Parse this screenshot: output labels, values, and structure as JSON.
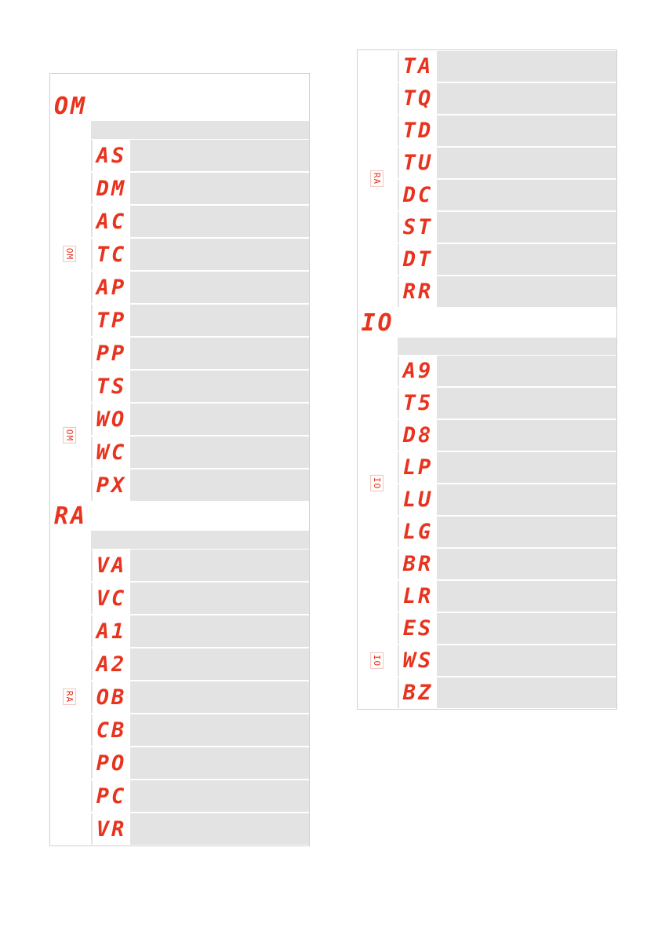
{
  "columns": [
    {
      "sections": [
        {
          "code": "OM",
          "groups": [
            {
              "label": "OM",
              "rows": [
                "AS",
                "DM",
                "AC",
                "TC",
                "AP",
                "TP",
                "PP"
              ]
            },
            {
              "label": "OM",
              "rows": [
                "TS",
                "WO",
                "WC",
                "PX"
              ]
            }
          ]
        },
        {
          "code": "RA",
          "groups": [
            {
              "label": "RA",
              "rows": [
                "VA",
                "VC",
                "A1",
                "A2",
                "OB",
                "CB",
                "PO",
                "PC",
                "VR"
              ]
            }
          ]
        }
      ]
    },
    {
      "sections": [
        {
          "code": null,
          "groups": [
            {
              "label": "RA",
              "rows": [
                "TA",
                "TQ",
                "TD",
                "TU",
                "DC",
                "ST",
                "DT",
                "RR"
              ]
            }
          ]
        },
        {
          "code": "IO",
          "groups": [
            {
              "label": "IO",
              "rows": [
                "A9",
                "T5",
                "D8",
                "LP",
                "LU",
                "LG",
                "BR",
                "LR"
              ]
            },
            {
              "label": "IO",
              "rows": [
                "ES",
                "WS",
                "BZ"
              ]
            }
          ]
        }
      ]
    }
  ]
}
